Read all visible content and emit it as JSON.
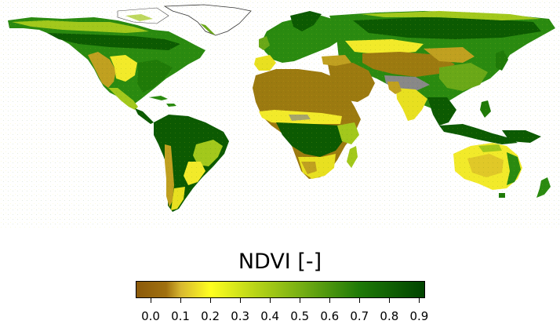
{
  "legend": {
    "title": "NDVI [-]",
    "ticks": [
      "0.0",
      "0.1",
      "0.2",
      "0.3",
      "0.4",
      "0.5",
      "0.6",
      "0.7",
      "0.8",
      "0.9"
    ],
    "tick_values": [
      0.0,
      0.1,
      0.2,
      0.3,
      0.4,
      0.5,
      0.6,
      0.7,
      0.8,
      0.9
    ],
    "range": [
      -0.05,
      0.92
    ],
    "color_stops": [
      {
        "value": -0.05,
        "color": "#8b5a0a"
      },
      {
        "value": 0.05,
        "color": "#a0700f"
      },
      {
        "value": 0.1,
        "color": "#d8b830"
      },
      {
        "value": 0.2,
        "color": "#ffff20"
      },
      {
        "value": 0.35,
        "color": "#b8d418"
      },
      {
        "value": 0.5,
        "color": "#78b014"
      },
      {
        "value": 0.7,
        "color": "#1f7a08"
      },
      {
        "value": 0.92,
        "color": "#004400"
      }
    ]
  },
  "colors": {
    "desert": "#9c7a10",
    "arid": "#c0a020",
    "semi_arid": "#f2ea2a",
    "grassland": "#a2c81c",
    "shrub": "#6aa818",
    "forest": "#2a8a10",
    "dense_forest": "#0c5a02",
    "snow_nodata": "#888888"
  }
}
